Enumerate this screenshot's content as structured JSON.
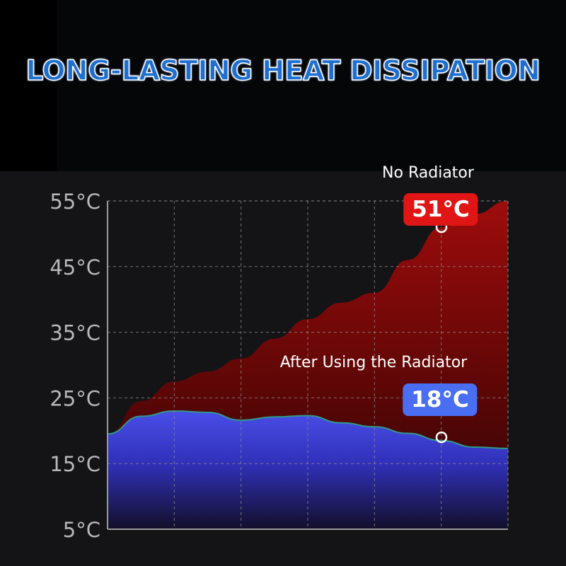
{
  "title": "LONG-LASTING HEAT DISSIPATION",
  "chart_data": {
    "type": "area",
    "x": [
      0,
      1,
      2,
      3,
      4,
      5,
      6,
      7,
      8,
      9,
      10,
      11,
      12
    ],
    "y_ticks": [
      "55°C",
      "45°C",
      "35°C",
      "25°C",
      "15°C",
      "5°C"
    ],
    "ylim": [
      5,
      55
    ],
    "grid": true,
    "series": [
      {
        "name": "No Radiator",
        "color": "#b01010",
        "values": [
          19.5,
          24.5,
          27.5,
          29,
          31,
          34,
          37,
          39.5,
          41,
          46,
          51,
          53,
          55
        ]
      },
      {
        "name": "After Using the Radiator",
        "color": "#4a55e8",
        "values": [
          19.5,
          22.2,
          23,
          22.8,
          21.6,
          22.1,
          22.3,
          21.2,
          20.6,
          19.6,
          18.5,
          17.5,
          17.3
        ]
      }
    ],
    "annotations": [
      {
        "label": "No Radiator",
        "value": "51°C",
        "x": 10,
        "y": 51
      },
      {
        "label": "After Using the Radiator",
        "value": "18°C",
        "x": 10,
        "y": 19
      }
    ]
  }
}
